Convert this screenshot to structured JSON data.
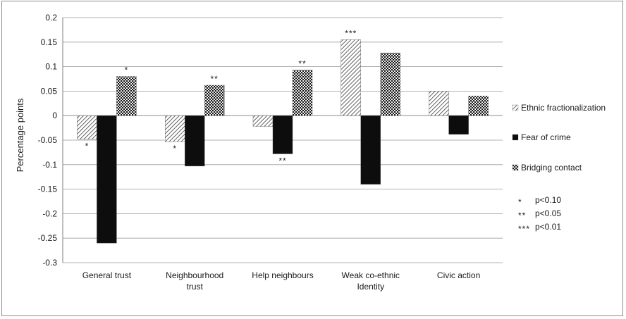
{
  "chart_data": {
    "type": "bar",
    "title": "",
    "xlabel": "",
    "ylabel": "Percentage points",
    "ylim": [
      -0.3,
      0.2
    ],
    "yticks": [
      "0.2",
      "0.15",
      "0.1",
      "0.05",
      "0",
      "-0.05",
      "-0.1",
      "-0.15",
      "-0.2",
      "-0.25",
      "-0.3"
    ],
    "grid": true,
    "legend_position": "right",
    "categories": [
      [
        "General trust"
      ],
      [
        "Neighbourhood",
        "trust"
      ],
      [
        "Help neighbours"
      ],
      [
        "Weak co-ethnic",
        "Identity"
      ],
      [
        "Civic action"
      ]
    ],
    "series": [
      {
        "name": "Ethnic fractionalization",
        "pattern": "diagonal-hatch",
        "values": [
          -0.048,
          -0.053,
          -0.022,
          0.155,
          0.05
        ],
        "significance": [
          "*",
          "*",
          "",
          "***",
          ""
        ]
      },
      {
        "name": "Fear of crime",
        "pattern": "solid-black",
        "values": [
          -0.26,
          -0.103,
          -0.078,
          -0.14,
          -0.038
        ],
        "significance": [
          "",
          "",
          "**",
          "",
          ""
        ]
      },
      {
        "name": "Bridging contact",
        "pattern": "dotted",
        "values": [
          0.08,
          0.062,
          0.093,
          0.128,
          0.04
        ],
        "significance": [
          "*",
          "**",
          "**",
          "",
          ""
        ]
      }
    ],
    "significance_legend": [
      {
        "stars": "*",
        "label": "p<0.10"
      },
      {
        "stars": "**",
        "label": "p<0.05"
      },
      {
        "stars": "***",
        "label": "p<0.01"
      }
    ],
    "colors": {
      "axis": "#7f7f7f",
      "grid": "#9a9a9a",
      "bar_dark": "#0d0d0d"
    }
  }
}
